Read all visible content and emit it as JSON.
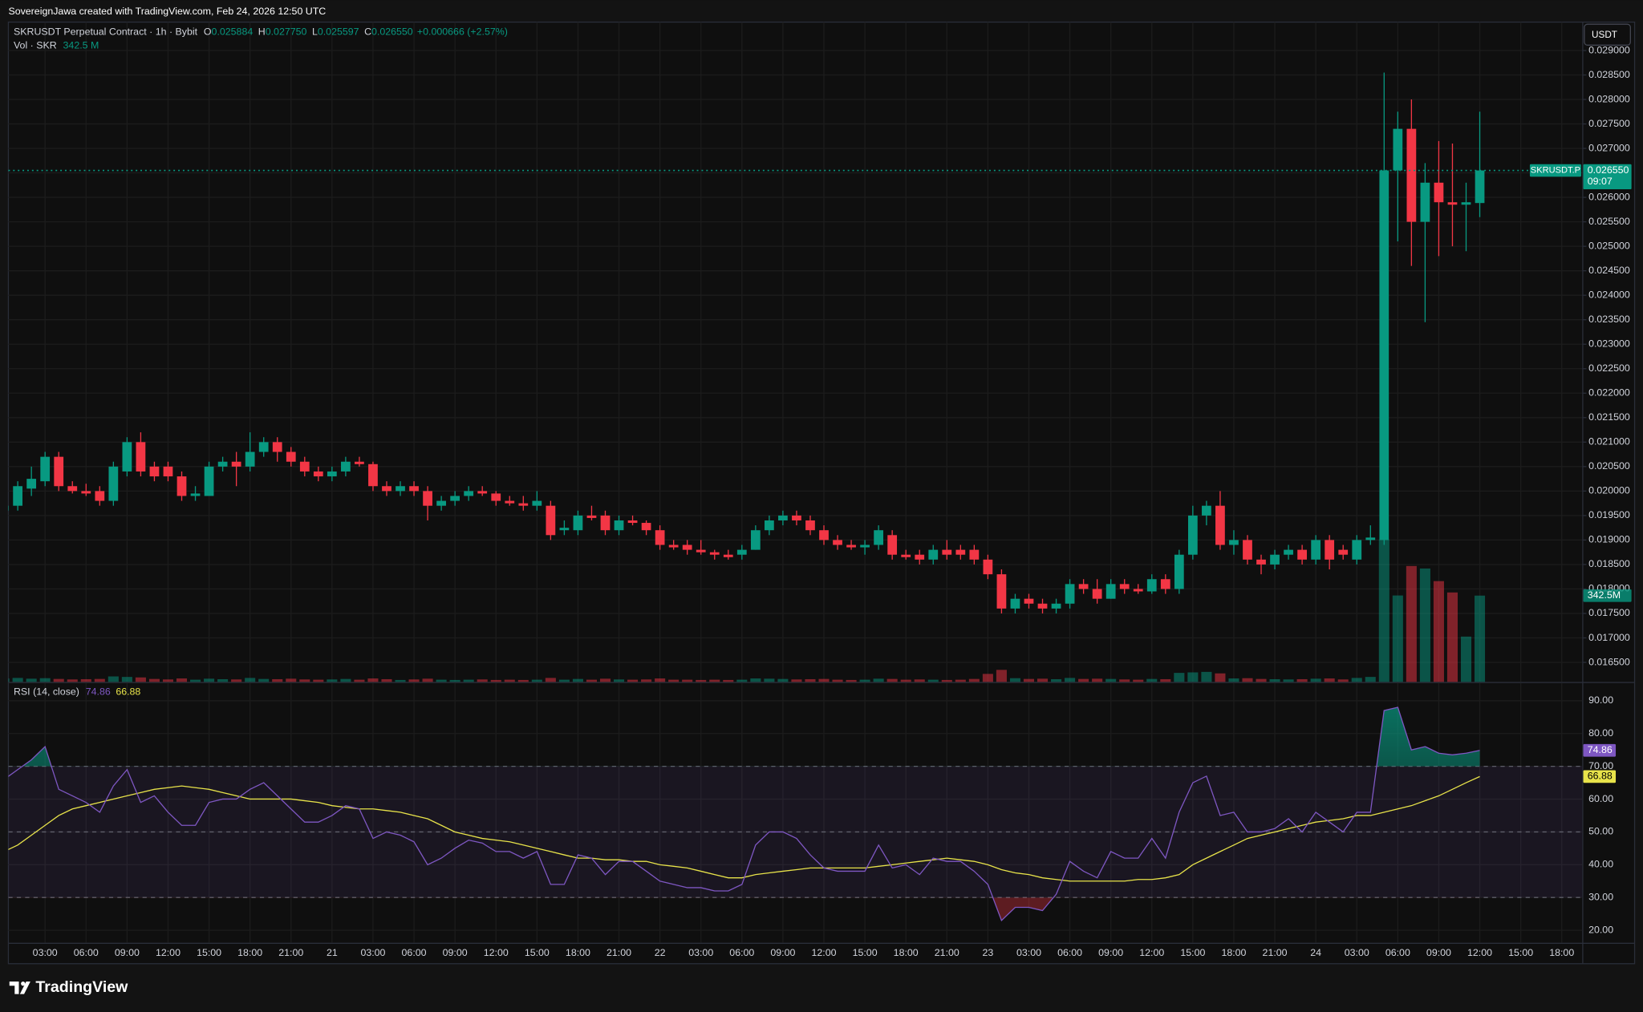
{
  "header": {
    "credit": "SovereignJawa created with TradingView.com, Feb 24, 2026 12:50 UTC"
  },
  "chart_data": {
    "type": "candlestick",
    "symbol_label": "SKRUSDT Perpetual Contract · 1h · Bybit",
    "legend": [
      {
        "key": "O",
        "value": "0.025884"
      },
      {
        "key": "H",
        "value": "0.027750"
      },
      {
        "key": "L",
        "value": "0.025597"
      },
      {
        "key": "C",
        "value": "0.026550"
      }
    ],
    "change": "+0.000666 (+2.57%)",
    "volume_legend": {
      "name": "Vol · SKR",
      "value": "342.5 M"
    },
    "currency": "USDT",
    "symbol_tag": "SKRUSDT.P",
    "last_price_label": "0.026550",
    "countdown": "09:07",
    "volume_label": "342.5M",
    "up_color": "#089981",
    "down_color": "#f23645",
    "categories": [
      null,
      null,
      null,
      "03:00",
      null,
      null,
      "06:00",
      null,
      null,
      "09:00",
      null,
      null,
      "12:00",
      null,
      null,
      "15:00",
      null,
      null,
      "18:00",
      null,
      null,
      "21:00",
      null,
      null,
      "21",
      null,
      null,
      "03:00",
      null,
      null,
      "06:00",
      null,
      null,
      "09:00",
      null,
      null,
      "12:00",
      null,
      null,
      "15:00",
      null,
      null,
      "18:00",
      null,
      null,
      "21:00",
      null,
      null,
      "22",
      null,
      null,
      "03:00",
      null,
      null,
      "06:00",
      null,
      null,
      "09:00",
      null,
      null,
      "12:00",
      null,
      null,
      "15:00",
      null,
      null,
      "18:00",
      null,
      null,
      "21:00",
      null,
      null,
      "23",
      null,
      null,
      "03:00",
      null,
      null,
      "06:00",
      null,
      null,
      "09:00",
      null,
      null,
      "12:00",
      null,
      null,
      "15:00",
      null,
      null,
      "18:00",
      null,
      null,
      "21:00",
      null,
      null,
      "24",
      null,
      null,
      "03:00",
      null,
      null,
      "06:00",
      null,
      null,
      "09:00",
      null,
      null,
      "12:00",
      null,
      null,
      "15:00",
      null,
      null,
      "18:00"
    ],
    "open": [
      0.0196,
      0.0197,
      0.02005,
      0.0202,
      0.0207,
      0.0201,
      0.02,
      0.02,
      0.0198,
      0.0204,
      0.021,
      0.0205,
      0.0205,
      0.0203,
      0.0199,
      0.0199,
      0.0205,
      0.0206,
      0.0205,
      0.0208,
      0.021,
      0.0208,
      0.0206,
      0.0204,
      0.0203,
      0.0204,
      0.0206,
      0.02055,
      0.0201,
      0.02,
      0.0201,
      0.02,
      0.0197,
      0.0198,
      0.0199,
      0.02,
      0.01995,
      0.0198,
      0.01975,
      0.0197,
      0.0197,
      0.0192,
      0.0192,
      0.0195,
      0.0195,
      0.0192,
      0.0194,
      0.01935,
      0.0192,
      0.0189,
      0.0189,
      0.0188,
      0.01875,
      0.0187,
      0.0187,
      0.0188,
      0.0192,
      0.0194,
      0.0195,
      0.0194,
      0.0192,
      0.019,
      0.0189,
      0.01885,
      0.0189,
      0.0191,
      0.0187,
      0.0187,
      0.0186,
      0.0188,
      0.0188,
      0.0188,
      0.0186,
      0.0183,
      0.0176,
      0.0178,
      0.0177,
      0.0176,
      0.0177,
      0.0181,
      0.018,
      0.0178,
      0.0181,
      0.018,
      0.01795,
      0.0182,
      0.018,
      0.0187,
      0.0195,
      0.0197,
      0.0189,
      0.019,
      0.0186,
      0.0185,
      0.0187,
      0.0188,
      0.0186,
      0.019,
      0.0188,
      0.0186,
      0.019,
      0.019,
      0.02655,
      0.0274,
      0.0255,
      0.0263,
      0.0259,
      0.02585,
      0.025884,
      null,
      null,
      null,
      null,
      null,
      null
    ],
    "high": [
      0.0199,
      0.0202,
      0.0205,
      0.0208,
      0.0208,
      0.0202,
      0.02015,
      0.0201,
      0.0206,
      0.0211,
      0.0212,
      0.0206,
      0.0206,
      0.0204,
      0.0201,
      0.0206,
      0.0207,
      0.0208,
      0.0212,
      0.0211,
      0.0211,
      0.0209,
      0.0207,
      0.0205,
      0.0205,
      0.0207,
      0.0207,
      0.0206,
      0.0202,
      0.0202,
      0.0202,
      0.0201,
      0.0199,
      0.02,
      0.0201,
      0.0201,
      0.02,
      0.0199,
      0.0199,
      0.02,
      0.0198,
      0.0194,
      0.0196,
      0.0197,
      0.0196,
      0.0195,
      0.0195,
      0.0194,
      0.0193,
      0.019,
      0.019,
      0.019,
      0.0188,
      0.0188,
      0.0189,
      0.0193,
      0.0195,
      0.0196,
      0.0196,
      0.0195,
      0.0193,
      0.0191,
      0.019,
      0.019,
      0.0193,
      0.0192,
      0.0188,
      0.0188,
      0.0189,
      0.019,
      0.0189,
      0.0189,
      0.0187,
      0.0184,
      0.0179,
      0.0179,
      0.0178,
      0.0178,
      0.0182,
      0.0182,
      0.0182,
      0.0182,
      0.0182,
      0.0181,
      0.0183,
      0.0183,
      0.0188,
      0.0197,
      0.0198,
      0.02,
      0.0192,
      0.0191,
      0.0187,
      0.0188,
      0.0189,
      0.0189,
      0.0191,
      0.0191,
      0.0189,
      0.0191,
      0.0193,
      0.02855,
      0.02775,
      0.028,
      0.0267,
      0.02715,
      0.0271,
      0.0263,
      0.02775,
      null,
      null,
      null,
      null,
      null,
      null
    ],
    "low": [
      0.0195,
      0.0196,
      0.0199,
      0.0201,
      0.02,
      0.01995,
      0.0199,
      0.0197,
      0.0197,
      0.0203,
      0.0203,
      0.0202,
      0.0202,
      0.0198,
      0.0198,
      0.0199,
      0.0204,
      0.0201,
      0.0204,
      0.0207,
      0.0206,
      0.0205,
      0.0203,
      0.0202,
      0.0202,
      0.0203,
      0.0205,
      0.02,
      0.0199,
      0.0199,
      0.0199,
      0.0194,
      0.0196,
      0.0197,
      0.0198,
      0.0199,
      0.0197,
      0.0197,
      0.0196,
      0.0196,
      0.019,
      0.0191,
      0.0191,
      0.0194,
      0.0191,
      0.0191,
      0.0193,
      0.0191,
      0.0188,
      0.0188,
      0.0187,
      0.0187,
      0.0186,
      0.0186,
      0.0186,
      0.0188,
      0.0191,
      0.0193,
      0.0193,
      0.0191,
      0.0189,
      0.0188,
      0.0188,
      0.0187,
      0.0188,
      0.0186,
      0.0186,
      0.0185,
      0.0185,
      0.0186,
      0.0186,
      0.0185,
      0.0182,
      0.0175,
      0.0175,
      0.0176,
      0.0175,
      0.0175,
      0.0176,
      0.0179,
      0.0177,
      0.0178,
      0.0179,
      0.0179,
      0.0179,
      0.0179,
      0.0179,
      0.0186,
      0.0193,
      0.0188,
      0.0187,
      0.0185,
      0.0183,
      0.0184,
      0.0186,
      0.0185,
      0.0185,
      0.0184,
      0.0186,
      0.0185,
      0.0189,
      0.0189,
      0.0251,
      0.0246,
      0.02345,
      0.0248,
      0.025,
      0.0249,
      0.025597,
      null,
      null,
      null,
      null,
      null,
      null
    ],
    "close": [
      0.0197,
      0.0201,
      0.02025,
      0.0207,
      0.0201,
      0.02,
      0.01995,
      0.0198,
      0.0205,
      0.021,
      0.0204,
      0.0203,
      0.0203,
      0.0199,
      0.01995,
      0.0205,
      0.0206,
      0.0205,
      0.0208,
      0.021,
      0.0208,
      0.0206,
      0.0204,
      0.0203,
      0.0204,
      0.0206,
      0.02055,
      0.0201,
      0.02,
      0.0201,
      0.02,
      0.0197,
      0.0198,
      0.0199,
      0.02,
      0.01995,
      0.0198,
      0.01975,
      0.0197,
      0.0198,
      0.0191,
      0.01925,
      0.0195,
      0.01945,
      0.0192,
      0.0194,
      0.01935,
      0.0192,
      0.0189,
      0.01885,
      0.0188,
      0.01875,
      0.0187,
      0.01865,
      0.0188,
      0.0192,
      0.0194,
      0.0195,
      0.0194,
      0.0192,
      0.019,
      0.0189,
      0.01885,
      0.0189,
      0.0192,
      0.0187,
      0.01865,
      0.0186,
      0.0188,
      0.0187,
      0.0187,
      0.0186,
      0.0183,
      0.0176,
      0.0178,
      0.0177,
      0.0176,
      0.0177,
      0.0181,
      0.018,
      0.0178,
      0.0181,
      0.018,
      0.01795,
      0.0182,
      0.018,
      0.0187,
      0.0195,
      0.0197,
      0.0189,
      0.019,
      0.0186,
      0.0185,
      0.0187,
      0.0188,
      0.0186,
      0.019,
      0.0186,
      0.0187,
      0.019,
      0.01905,
      0.02655,
      0.0274,
      0.0255,
      0.0263,
      0.0259,
      0.02585,
      0.0259,
      0.02655,
      null,
      null,
      null,
      null,
      null,
      null
    ],
    "volume": [
      14000000,
      16000000,
      13000000,
      15000000,
      12000000,
      10000000,
      11000000,
      12000000,
      22000000,
      20000000,
      18000000,
      12000000,
      10000000,
      14000000,
      9000000,
      13000000,
      11000000,
      10000000,
      16000000,
      12000000,
      11000000,
      13000000,
      10000000,
      9000000,
      10000000,
      12000000,
      9000000,
      14000000,
      11000000,
      8000000,
      10000000,
      13000000,
      9000000,
      8000000,
      9000000,
      10000000,
      8000000,
      9000000,
      8000000,
      9000000,
      16000000,
      9000000,
      12000000,
      9000000,
      13000000,
      10000000,
      9000000,
      10000000,
      14000000,
      9000000,
      9000000,
      8000000,
      9000000,
      8000000,
      9000000,
      14000000,
      13000000,
      12000000,
      10000000,
      11000000,
      12000000,
      9000000,
      8000000,
      9000000,
      13000000,
      12000000,
      9000000,
      10000000,
      9000000,
      8000000,
      9000000,
      12000000,
      32000000,
      48000000,
      15000000,
      12000000,
      13000000,
      11000000,
      16000000,
      12000000,
      13000000,
      12000000,
      10000000,
      9000000,
      12000000,
      11000000,
      36000000,
      38000000,
      40000000,
      34000000,
      14000000,
      15000000,
      12000000,
      11000000,
      10000000,
      11000000,
      13000000,
      14000000,
      10000000,
      16000000,
      20000000,
      565000000,
      343000000,
      460000000,
      450000000,
      400000000,
      355000000,
      180000000,
      342500000,
      null,
      null,
      null,
      null,
      null,
      null
    ],
    "ylim": [
      0.0161,
      0.02958
    ],
    "yticks": [
      {
        "value": 0.0165,
        "label": "0.016500"
      },
      {
        "value": 0.017,
        "label": "0.017000"
      },
      {
        "value": 0.0175,
        "label": "0.017500"
      },
      {
        "value": 0.018,
        "label": "0.018000"
      },
      {
        "value": 0.0185,
        "label": "0.018500"
      },
      {
        "value": 0.019,
        "label": "0.019000"
      },
      {
        "value": 0.0195,
        "label": "0.019500"
      },
      {
        "value": 0.02,
        "label": "0.020000"
      },
      {
        "value": 0.0205,
        "label": "0.020500"
      },
      {
        "value": 0.021,
        "label": "0.021000"
      },
      {
        "value": 0.0215,
        "label": "0.021500"
      },
      {
        "value": 0.022,
        "label": "0.022000"
      },
      {
        "value": 0.0225,
        "label": "0.022500"
      },
      {
        "value": 0.023,
        "label": "0.023000"
      },
      {
        "value": 0.0235,
        "label": "0.023500"
      },
      {
        "value": 0.024,
        "label": "0.024000"
      },
      {
        "value": 0.0245,
        "label": "0.024500"
      },
      {
        "value": 0.025,
        "label": "0.025000"
      },
      {
        "value": 0.0255,
        "label": "0.025500"
      },
      {
        "value": 0.026,
        "label": "0.026000"
      },
      {
        "value": 0.0265,
        "label": "0.026500"
      },
      {
        "value": 0.027,
        "label": "0.027000"
      },
      {
        "value": 0.0275,
        "label": "0.027500"
      },
      {
        "value": 0.028,
        "label": "0.028000"
      },
      {
        "value": 0.0285,
        "label": "0.028500"
      },
      {
        "value": 0.029,
        "label": "0.029000"
      }
    ],
    "grid": true,
    "rsi": {
      "title": "RSI (14, close)",
      "color": "#7e57c2",
      "ma_color": "#e8e34a",
      "values": [
        66,
        69,
        72,
        76,
        63,
        61,
        59,
        56,
        64,
        69,
        59,
        61,
        56,
        52,
        52,
        59,
        60,
        60,
        63,
        65,
        61,
        57,
        53,
        53,
        55,
        58,
        57,
        48,
        50,
        49,
        47,
        40,
        42,
        45,
        47.5,
        46.6,
        44,
        44,
        42,
        44,
        34,
        34,
        43,
        42,
        37,
        41,
        41,
        38,
        35,
        34,
        33,
        33,
        32,
        32,
        34,
        46,
        50,
        50,
        48,
        43,
        39,
        38,
        38,
        38,
        46,
        39,
        40,
        37,
        42,
        41,
        41,
        38,
        34,
        23,
        27,
        27,
        26,
        31,
        41,
        38,
        36,
        44,
        42,
        42,
        48,
        42,
        56,
        65,
        67,
        55,
        56,
        50,
        50,
        51,
        54,
        50,
        56,
        53,
        50,
        56,
        56,
        87,
        88,
        75,
        76,
        74,
        73.5,
        74,
        74.86,
        null,
        null,
        null,
        null,
        null,
        null
      ],
      "ma": [
        44,
        46,
        49,
        52,
        55,
        57,
        58,
        59,
        60,
        61,
        62,
        63,
        63.5,
        64,
        63.5,
        63,
        62,
        61,
        60,
        60,
        60,
        60,
        59.5,
        59,
        58,
        57.5,
        57,
        57,
        56.5,
        56,
        55,
        54,
        52,
        50,
        49,
        48,
        47.5,
        47,
        46,
        45,
        44,
        43,
        42,
        42,
        41.5,
        41.5,
        41,
        41,
        40,
        39.5,
        39,
        38,
        37,
        36,
        36,
        37,
        37.5,
        38,
        38.5,
        39,
        39,
        39,
        39,
        39,
        39.5,
        40,
        40.5,
        41,
        41.5,
        42,
        41.5,
        41,
        40,
        38.5,
        37.5,
        37,
        36,
        35.5,
        35,
        35,
        35,
        35,
        35,
        35.5,
        35.5,
        36,
        37,
        40,
        42,
        44,
        46,
        48,
        49,
        50,
        51,
        52,
        53,
        53.5,
        54,
        55,
        55,
        56,
        57,
        58,
        59.5,
        61,
        63,
        65,
        66.88,
        null,
        null,
        null,
        null,
        null,
        null
      ],
      "bands": [
        30,
        50,
        70
      ],
      "ylim": [
        16.2,
        95.4
      ],
      "yticks": [
        {
          "value": 20,
          "label": "20.00"
        },
        {
          "value": 30,
          "label": "30.00"
        },
        {
          "value": 40,
          "label": "40.00"
        },
        {
          "value": 50,
          "label": "50.00"
        },
        {
          "value": 60,
          "label": "60.00"
        },
        {
          "value": 70,
          "label": "70.00"
        },
        {
          "value": 80,
          "label": "80.00"
        },
        {
          "value": 90,
          "label": "90.00"
        }
      ]
    }
  },
  "footer": {
    "brand": "TradingView"
  }
}
